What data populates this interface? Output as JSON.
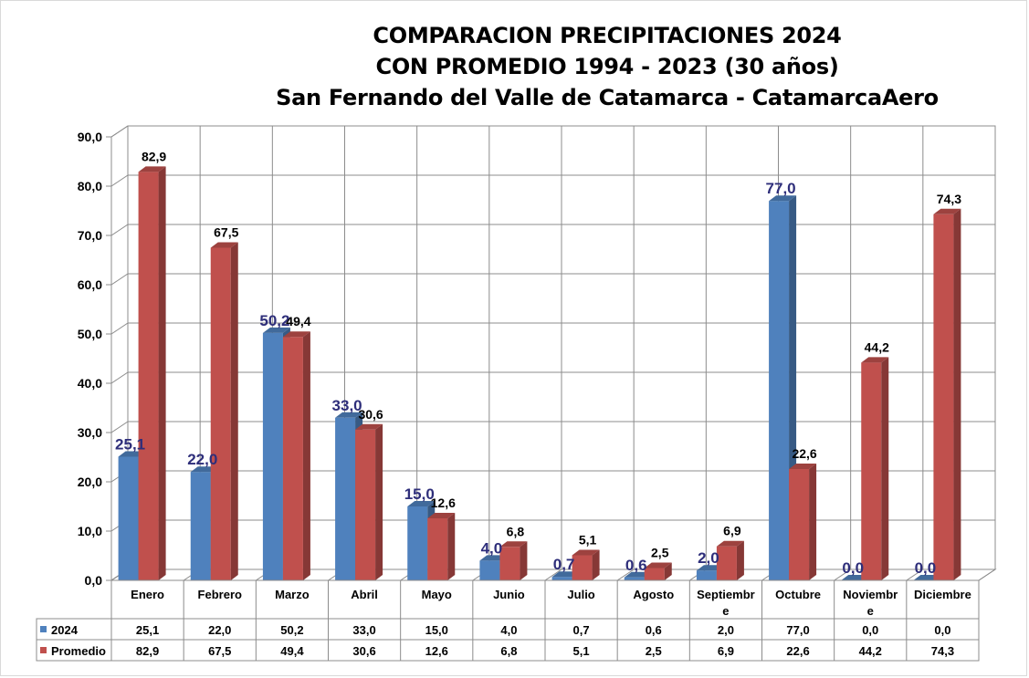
{
  "chart_data": {
    "type": "bar",
    "title_lines": [
      "COMPARACION PRECIPITACIONES 2024",
      "CON PROMEDIO 1994 - 2023 (30 años)",
      "San Fernando del Valle de Catamarca - CatamarcaAero"
    ],
    "categories": [
      [
        "Enero"
      ],
      [
        "Febrero"
      ],
      [
        "Marzo"
      ],
      [
        "Abril"
      ],
      [
        "Mayo"
      ],
      [
        "Junio"
      ],
      [
        "Julio"
      ],
      [
        "Agosto"
      ],
      [
        "Septiembr",
        "e"
      ],
      [
        "Octubre"
      ],
      [
        "Noviembr",
        "e"
      ],
      [
        "Diciembre"
      ]
    ],
    "series": [
      {
        "name": "2024",
        "color": "#4f81bd",
        "values": [
          25.1,
          22.0,
          50.2,
          33.0,
          15.0,
          4.0,
          0.7,
          0.6,
          2.0,
          77.0,
          0.0,
          0.0
        ],
        "labels": [
          "25,1",
          "22,0",
          "50,2",
          "33,0",
          "15,0",
          "4,0",
          "0,7",
          "0,6",
          "2,0",
          "77,0",
          "0,0",
          "0,0"
        ]
      },
      {
        "name": "Promedio",
        "color": "#c0504d",
        "values": [
          82.9,
          67.5,
          49.4,
          30.6,
          12.6,
          6.8,
          5.1,
          2.5,
          6.9,
          22.6,
          44.2,
          74.3
        ],
        "labels": [
          "82,9",
          "67,5",
          "49,4",
          "30,6",
          "12,6",
          "6,8",
          "5,1",
          "2,5",
          "6,9",
          "22,6",
          "44,2",
          "74,3"
        ]
      }
    ],
    "yticks": [
      "0,0",
      "10,0",
      "20,0",
      "30,0",
      "40,0",
      "50,0",
      "60,0",
      "70,0",
      "80,0",
      "90,0"
    ],
    "ylim": [
      0,
      90
    ],
    "grid": true,
    "legend": "data-table",
    "xlabel": "",
    "ylabel": ""
  }
}
